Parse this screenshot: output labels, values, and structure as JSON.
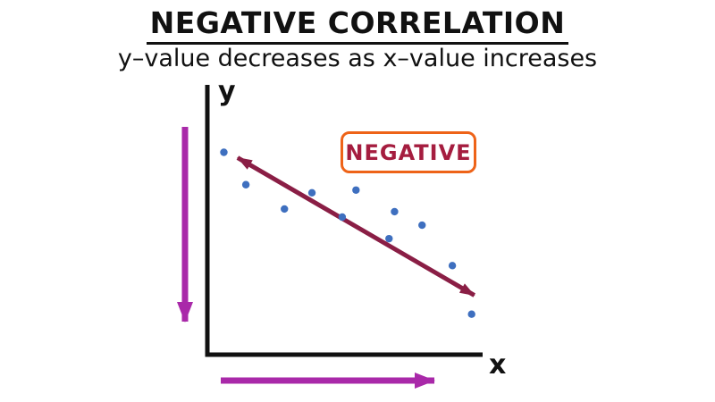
{
  "title": "NEGATIVE CORRELATION",
  "subtitle": "y–value decreases as x–value increases",
  "axes": {
    "x_label": "x",
    "y_label": "y"
  },
  "annotation": {
    "label": "NEGATIVE"
  },
  "colors": {
    "title": "#111111",
    "axis": "#111111",
    "point": "#3e6fbf",
    "trend_arrow": "#8a1e45",
    "accent_arrow": "#a929a9",
    "annotation_text": "#a51d3f",
    "annotation_border": "#ee6318",
    "background": "#ffffff"
  },
  "chart_data": {
    "type": "scatter",
    "title": "NEGATIVE CORRELATION",
    "subtitle": "y–value decreases as x–value increases",
    "xlabel": "x",
    "ylabel": "y",
    "xlim": [
      0,
      10
    ],
    "ylim": [
      0,
      10
    ],
    "grid": false,
    "legend": false,
    "points": [
      {
        "x": 0.6,
        "y": 7.5
      },
      {
        "x": 1.4,
        "y": 6.3
      },
      {
        "x": 2.8,
        "y": 5.4
      },
      {
        "x": 3.8,
        "y": 6.0
      },
      {
        "x": 4.9,
        "y": 5.1
      },
      {
        "x": 5.4,
        "y": 6.1
      },
      {
        "x": 6.6,
        "y": 4.3
      },
      {
        "x": 6.8,
        "y": 5.3
      },
      {
        "x": 7.8,
        "y": 4.8
      },
      {
        "x": 8.9,
        "y": 3.3
      },
      {
        "x": 9.6,
        "y": 1.5
      }
    ],
    "trend": {
      "x1": 1.1,
      "y1": 7.3,
      "x2": 9.7,
      "y2": 2.2,
      "arrow": "both",
      "meaning": "negative slope trend line"
    },
    "helper_arrows": [
      {
        "name": "y-decrease",
        "direction": "down",
        "meaning": "y-value decreases"
      },
      {
        "name": "x-increase",
        "direction": "right",
        "meaning": "x-value increases"
      }
    ],
    "annotations": [
      {
        "text": "NEGATIVE"
      }
    ]
  }
}
